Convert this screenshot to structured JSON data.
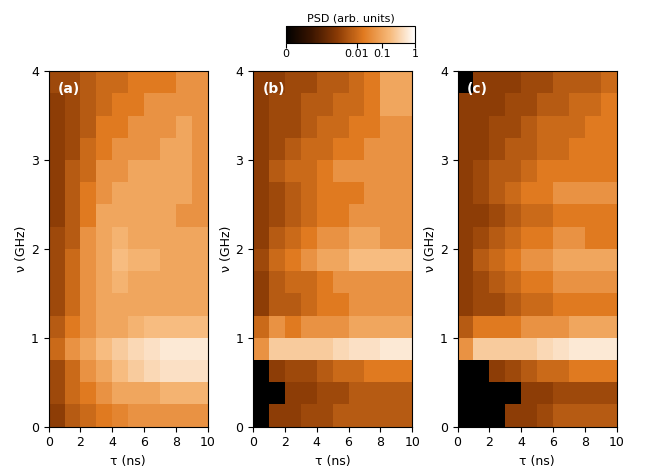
{
  "chart_data": [
    {
      "type": "heatmap",
      "title": "(a)",
      "x_label": "τ (ns)",
      "y_label": "ν (GHz)",
      "xlim": [
        0,
        10
      ],
      "ylim": [
        0,
        4
      ],
      "xticks": [
        0,
        2,
        4,
        6,
        8,
        10
      ],
      "yticks": [
        0,
        1,
        2,
        3,
        4
      ],
      "x": [
        0.5,
        1.5,
        2.5,
        3.5,
        4.5,
        5.5,
        6.5,
        7.5,
        8.5,
        9.5
      ],
      "y": [
        0.125,
        0.375,
        0.625,
        0.875,
        1.125,
        1.375,
        1.625,
        1.875,
        2.125,
        2.375,
        2.625,
        2.875,
        3.125,
        3.375,
        3.625,
        3.875
      ],
      "cells": [
        [
          0.001,
          0.005,
          0.01,
          0.02,
          0.03,
          0.05,
          0.05,
          0.05,
          0.05,
          0.05
        ],
        [
          0.002,
          0.01,
          0.02,
          0.05,
          0.1,
          0.1,
          0.1,
          0.15,
          0.15,
          0.15
        ],
        [
          0.002,
          0.01,
          0.05,
          0.1,
          0.2,
          0.3,
          0.4,
          0.5,
          0.5,
          0.5
        ],
        [
          0.01,
          0.05,
          0.1,
          0.2,
          0.3,
          0.4,
          0.5,
          0.6,
          0.6,
          0.6
        ],
        [
          0.005,
          0.02,
          0.05,
          0.1,
          0.1,
          0.15,
          0.2,
          0.2,
          0.2,
          0.2
        ],
        [
          0.002,
          0.01,
          0.05,
          0.1,
          0.1,
          0.1,
          0.1,
          0.1,
          0.1,
          0.1
        ],
        [
          0.002,
          0.01,
          0.05,
          0.1,
          0.15,
          0.1,
          0.1,
          0.1,
          0.1,
          0.1
        ],
        [
          0.002,
          0.01,
          0.05,
          0.1,
          0.2,
          0.15,
          0.15,
          0.1,
          0.1,
          0.1
        ],
        [
          0.002,
          0.005,
          0.05,
          0.1,
          0.15,
          0.1,
          0.1,
          0.1,
          0.1,
          0.1
        ],
        [
          0.001,
          0.005,
          0.02,
          0.1,
          0.1,
          0.1,
          0.1,
          0.1,
          0.05,
          0.05
        ],
        [
          0.001,
          0.005,
          0.02,
          0.05,
          0.1,
          0.1,
          0.1,
          0.1,
          0.1,
          0.05
        ],
        [
          0.001,
          0.005,
          0.01,
          0.05,
          0.05,
          0.1,
          0.1,
          0.1,
          0.1,
          0.05
        ],
        [
          0.001,
          0.002,
          0.01,
          0.02,
          0.05,
          0.05,
          0.05,
          0.1,
          0.1,
          0.05
        ],
        [
          0.001,
          0.002,
          0.005,
          0.02,
          0.02,
          0.05,
          0.05,
          0.05,
          0.1,
          0.05
        ],
        [
          0.001,
          0.002,
          0.005,
          0.01,
          0.02,
          0.02,
          0.05,
          0.05,
          0.05,
          0.05
        ],
        [
          0.002,
          0.002,
          0.005,
          0.01,
          0.01,
          0.02,
          0.02,
          0.02,
          0.05,
          0.05
        ]
      ]
    },
    {
      "type": "heatmap",
      "title": "(b)",
      "x_label": "τ (ns)",
      "y_label": "ν (GHz)",
      "xlim": [
        0,
        10
      ],
      "ylim": [
        0,
        4
      ],
      "xticks": [
        0,
        2,
        4,
        6,
        8,
        10
      ],
      "yticks": [
        0,
        1,
        2,
        3,
        4
      ],
      "x": [
        0.5,
        1.5,
        2.5,
        3.5,
        4.5,
        5.5,
        6.5,
        7.5,
        8.5,
        9.5
      ],
      "y": [
        0.125,
        0.375,
        0.625,
        0.875,
        1.125,
        1.375,
        1.625,
        1.875,
        2.125,
        2.375,
        2.625,
        2.875,
        3.125,
        3.375,
        3.625,
        3.875
      ],
      "cells": [
        [
          0,
          0.001,
          0.001,
          0.002,
          0.002,
          0.005,
          0.005,
          0.005,
          0.005,
          0.005
        ],
        [
          0,
          0,
          0.001,
          0.001,
          0.002,
          0.002,
          0.005,
          0.005,
          0.005,
          0.005
        ],
        [
          0,
          0.001,
          0.002,
          0.002,
          0.005,
          0.01,
          0.01,
          0.02,
          0.02,
          0.02
        ],
        [
          0.05,
          0.3,
          0.3,
          0.3,
          0.3,
          0.4,
          0.5,
          0.5,
          0.6,
          0.6
        ],
        [
          0.01,
          0.05,
          0.02,
          0.05,
          0.05,
          0.05,
          0.1,
          0.1,
          0.1,
          0.1
        ],
        [
          0.001,
          0.005,
          0.005,
          0.01,
          0.02,
          0.02,
          0.05,
          0.05,
          0.05,
          0.05
        ],
        [
          0.001,
          0.005,
          0.01,
          0.01,
          0.02,
          0.05,
          0.05,
          0.05,
          0.05,
          0.05
        ],
        [
          0.002,
          0.01,
          0.02,
          0.05,
          0.1,
          0.1,
          0.2,
          0.2,
          0.2,
          0.2
        ],
        [
          0.001,
          0.005,
          0.01,
          0.02,
          0.05,
          0.05,
          0.1,
          0.1,
          0.05,
          0.05
        ],
        [
          0.001,
          0.002,
          0.005,
          0.01,
          0.02,
          0.02,
          0.05,
          0.05,
          0.05,
          0.05
        ],
        [
          0.001,
          0.002,
          0.005,
          0.01,
          0.02,
          0.02,
          0.02,
          0.05,
          0.05,
          0.05
        ],
        [
          0.001,
          0.005,
          0.01,
          0.01,
          0.02,
          0.05,
          0.05,
          0.05,
          0.05,
          0.05
        ],
        [
          0.001,
          0.002,
          0.005,
          0.01,
          0.01,
          0.02,
          0.02,
          0.05,
          0.05,
          0.05
        ],
        [
          0.001,
          0.002,
          0.002,
          0.005,
          0.01,
          0.01,
          0.02,
          0.02,
          0.05,
          0.05
        ],
        [
          0.001,
          0.002,
          0.002,
          0.005,
          0.005,
          0.01,
          0.01,
          0.02,
          0.1,
          0.1
        ],
        [
          0.001,
          0.001,
          0.002,
          0.002,
          0.005,
          0.005,
          0.01,
          0.02,
          0.1,
          0.1
        ]
      ]
    },
    {
      "type": "heatmap",
      "title": "(c)",
      "x_label": "τ (ns)",
      "y_label": "ν (GHz)",
      "xlim": [
        0,
        10
      ],
      "ylim": [
        0,
        4
      ],
      "xticks": [
        0,
        2,
        4,
        6,
        8,
        10
      ],
      "yticks": [
        0,
        1,
        2,
        3,
        4
      ],
      "x": [
        0.5,
        1.5,
        2.5,
        3.5,
        4.5,
        5.5,
        6.5,
        7.5,
        8.5,
        9.5
      ],
      "y": [
        0.125,
        0.375,
        0.625,
        0.875,
        1.125,
        1.375,
        1.625,
        1.875,
        2.125,
        2.375,
        2.625,
        2.875,
        3.125,
        3.375,
        3.625,
        3.875
      ],
      "cells": [
        [
          0,
          0,
          0,
          0.001,
          0.001,
          0.002,
          0.005,
          0.005,
          0.005,
          0.005
        ],
        [
          0,
          0,
          0,
          0,
          0.001,
          0.001,
          0.002,
          0.002,
          0.002,
          0.002
        ],
        [
          0,
          0,
          0.001,
          0.002,
          0.005,
          0.01,
          0.01,
          0.02,
          0.02,
          0.02
        ],
        [
          0.05,
          0.3,
          0.3,
          0.3,
          0.3,
          0.4,
          0.5,
          0.6,
          0.6,
          0.6
        ],
        [
          0.005,
          0.02,
          0.02,
          0.02,
          0.05,
          0.05,
          0.05,
          0.1,
          0.1,
          0.1
        ],
        [
          0.001,
          0.002,
          0.002,
          0.005,
          0.01,
          0.01,
          0.02,
          0.02,
          0.02,
          0.02
        ],
        [
          0.001,
          0.002,
          0.005,
          0.01,
          0.02,
          0.02,
          0.05,
          0.05,
          0.05,
          0.05
        ],
        [
          0.001,
          0.005,
          0.01,
          0.02,
          0.05,
          0.05,
          0.1,
          0.1,
          0.1,
          0.1
        ],
        [
          0.001,
          0.002,
          0.005,
          0.01,
          0.02,
          0.02,
          0.05,
          0.05,
          0.02,
          0.02
        ],
        [
          0.001,
          0.001,
          0.002,
          0.005,
          0.01,
          0.01,
          0.02,
          0.02,
          0.02,
          0.02
        ],
        [
          0.001,
          0.002,
          0.005,
          0.01,
          0.02,
          0.02,
          0.05,
          0.05,
          0.05,
          0.05
        ],
        [
          0.001,
          0.002,
          0.005,
          0.005,
          0.01,
          0.02,
          0.02,
          0.02,
          0.02,
          0.02
        ],
        [
          0.001,
          0.001,
          0.002,
          0.005,
          0.005,
          0.01,
          0.01,
          0.02,
          0.02,
          0.02
        ],
        [
          0.001,
          0.001,
          0.002,
          0.002,
          0.005,
          0.01,
          0.01,
          0.01,
          0.02,
          0.02
        ],
        [
          0.001,
          0.001,
          0.001,
          0.002,
          0.002,
          0.005,
          0.005,
          0.01,
          0.01,
          0.02
        ],
        [
          0,
          0.001,
          0.001,
          0.001,
          0.002,
          0.002,
          0.005,
          0.005,
          0.005,
          0.01
        ]
      ]
    }
  ],
  "colorbar": {
    "label": "PSD (arb. units)",
    "range": [
      0,
      1
    ],
    "ticks": [
      0,
      0.01,
      0.1,
      1
    ]
  }
}
